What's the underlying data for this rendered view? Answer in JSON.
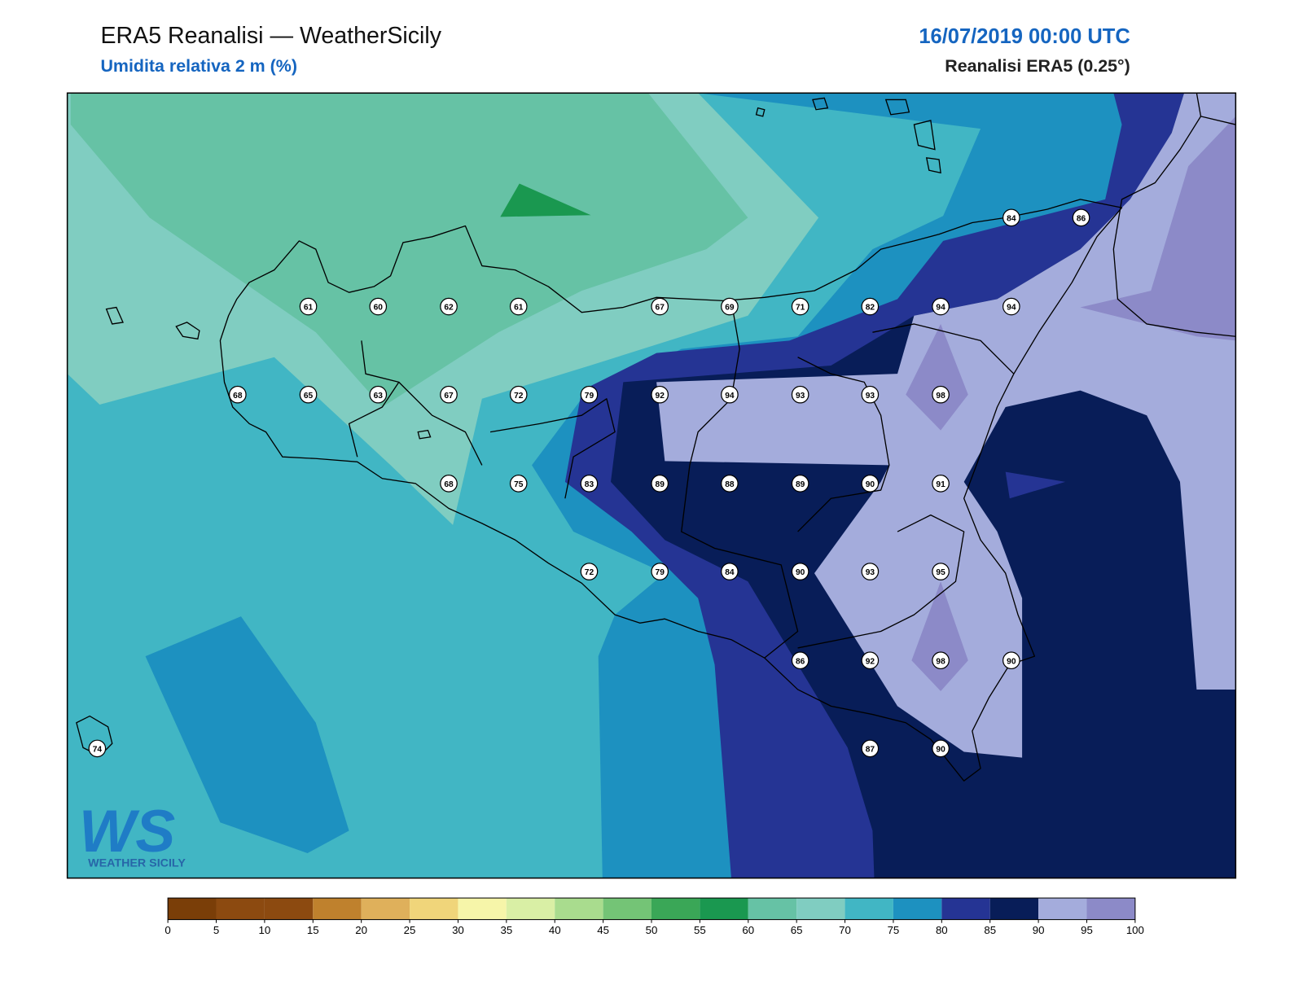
{
  "header": {
    "title": "ERA5 Reanalisi — WeatherSicily",
    "subtitle": "Umidita relativa 2 m (%)",
    "date": "16/07/2019 00:00 UTC",
    "source": "Reanalisi ERA5 (0.25°)"
  },
  "logo": {
    "mark": "WS",
    "text": "WEATHER SICILY"
  },
  "stations": [
    84,
    86,
    61,
    60,
    62,
    61,
    67,
    69,
    71,
    82,
    94,
    94,
    68,
    65,
    63,
    67,
    72,
    79,
    92,
    94,
    93,
    93,
    98,
    68,
    75,
    83,
    89,
    88,
    89,
    90,
    91,
    72,
    79,
    84,
    90,
    93,
    95,
    86,
    92,
    98,
    90,
    74,
    87,
    90
  ],
  "colorbar": {
    "ticks": [
      0,
      5,
      10,
      15,
      20,
      25,
      30,
      35,
      40,
      45,
      50,
      55,
      60,
      65,
      70,
      75,
      80,
      85,
      90,
      95,
      100
    ],
    "colors": [
      "#7a3e08",
      "#8c4a10",
      "#8c4a10",
      "#bf812d",
      "#dfb05b",
      "#f0d57a",
      "#f6f5a9",
      "#d9efa5",
      "#a9dc8e",
      "#74c476",
      "#3aa757",
      "#1a9850",
      "#66c2a5",
      "#80cdc1",
      "#41b6c4",
      "#1d91c0",
      "#253494",
      "#081d58",
      "#a4acdc",
      "#8c8ac8"
    ]
  }
}
